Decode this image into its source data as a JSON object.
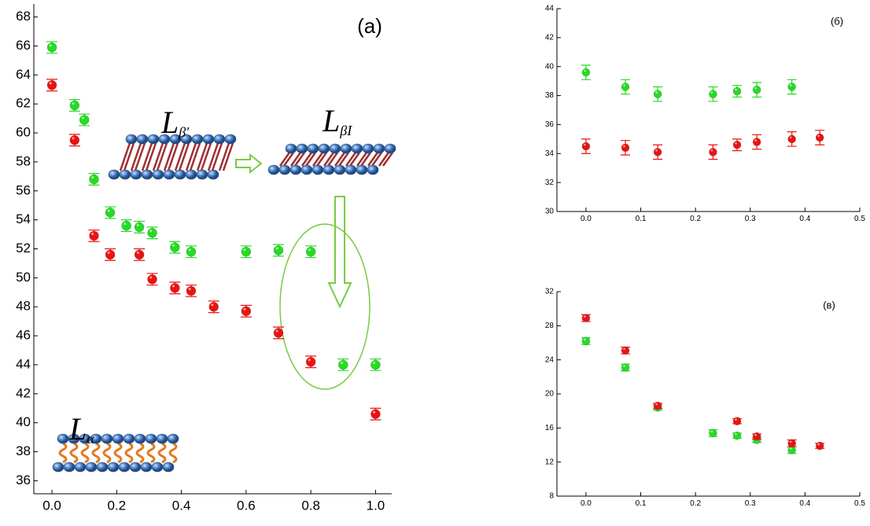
{
  "chart_data": [
    {
      "type": "scatter",
      "panel_label": "(a)",
      "phase_labels": [
        {
          "text": "L",
          "sub": "β'"
        },
        {
          "text": "L",
          "sub": "βI"
        },
        {
          "text": "L",
          "sub": "α"
        }
      ],
      "xlim": [
        -0.056,
        1.05
      ],
      "ylim": [
        35.1,
        68.9
      ],
      "xticks": [
        {
          "value": 0,
          "label": "0.0"
        },
        0.2,
        0.4,
        0.6,
        0.8,
        {
          "value": 1,
          "label": "1.0"
        }
      ],
      "yticks": [
        36,
        38,
        40,
        42,
        44,
        46,
        48,
        50,
        52,
        54,
        56,
        58,
        60,
        62,
        64,
        66,
        68
      ],
      "series": [
        {
          "color": "#22dd22",
          "x": [
            0,
            0.07,
            0.1,
            0.13,
            0.18,
            0.23,
            0.27,
            0.31,
            0.38,
            0.43,
            0.6,
            0.7,
            0.8,
            0.9,
            1.0
          ],
          "values": [
            65.9,
            61.9,
            60.9,
            56.8,
            54.5,
            53.6,
            53.5,
            53.1,
            52.1,
            51.8,
            51.8,
            51.9,
            51.8,
            44.0,
            44.0
          ],
          "errors": [
            0.4,
            0.4,
            0.4,
            0.4,
            0.4,
            0.4,
            0.4,
            0.4,
            0.4,
            0.4,
            0.4,
            0.4,
            0.4,
            0.4,
            0.4
          ]
        },
        {
          "color": "#ee1111",
          "x": [
            0,
            0.07,
            0.13,
            0.18,
            0.27,
            0.31,
            0.38,
            0.43,
            0.5,
            0.6,
            0.7,
            0.8,
            1.0
          ],
          "values": [
            63.3,
            59.5,
            52.9,
            51.6,
            51.6,
            49.9,
            49.3,
            49.1,
            48.0,
            47.7,
            46.2,
            44.2,
            40.6
          ],
          "errors": [
            0.4,
            0.4,
            0.4,
            0.4,
            0.4,
            0.4,
            0.4,
            0.4,
            0.4,
            0.4,
            0.4,
            0.4,
            0.4
          ]
        }
      ]
    },
    {
      "type": "scatter",
      "panel_label": "(б)",
      "xlim": [
        -0.053,
        0.5
      ],
      "ylim": [
        30,
        44
      ],
      "xticks": [
        {
          "value": 0,
          "label": "0.0"
        },
        0.1,
        0.2,
        0.3,
        0.4,
        0.5
      ],
      "yticks": [
        30,
        32,
        34,
        36,
        38,
        40,
        42,
        44
      ],
      "series": [
        {
          "color": "#22dd22",
          "x": [
            0,
            0.072,
            0.131,
            0.232,
            0.276,
            0.312,
            0.376
          ],
          "values": [
            39.6,
            38.6,
            38.1,
            38.1,
            38.3,
            38.4,
            38.6
          ],
          "errors": [
            0.5,
            0.5,
            0.5,
            0.5,
            0.4,
            0.5,
            0.5
          ]
        },
        {
          "color": "#ee1111",
          "x": [
            0,
            0.072,
            0.131,
            0.232,
            0.276,
            0.312,
            0.376,
            0.427
          ],
          "values": [
            34.5,
            34.4,
            34.1,
            34.1,
            34.6,
            34.8,
            35.0,
            35.1
          ],
          "errors": [
            0.5,
            0.5,
            0.5,
            0.5,
            0.4,
            0.5,
            0.5,
            0.5
          ]
        }
      ]
    },
    {
      "type": "scatter",
      "panel_label": "(в)",
      "xlim": [
        -0.053,
        0.5
      ],
      "ylim": [
        8,
        32
      ],
      "xticks": [
        {
          "value": 0,
          "label": "0.0"
        },
        0.1,
        0.2,
        0.3,
        0.4,
        0.5
      ],
      "yticks": [
        8,
        12,
        16,
        20,
        24,
        28,
        32
      ],
      "series": [
        {
          "color": "#22dd22",
          "x": [
            0,
            0.072,
            0.131,
            0.232,
            0.276,
            0.312,
            0.376
          ],
          "values": [
            26.2,
            23.1,
            18.4,
            15.4,
            15.1,
            14.6,
            13.4
          ],
          "errors": [
            0.4,
            0.4,
            0.3,
            0.4,
            0.3,
            0.3,
            0.4
          ]
        },
        {
          "color": "#ee1111",
          "x": [
            0,
            0.072,
            0.131,
            0.276,
            0.312,
            0.376,
            0.427
          ],
          "values": [
            28.9,
            25.1,
            18.6,
            16.8,
            15.0,
            14.2,
            13.9
          ],
          "errors": [
            0.4,
            0.4,
            0.3,
            0.3,
            0.3,
            0.4,
            0.3
          ]
        }
      ]
    }
  ]
}
